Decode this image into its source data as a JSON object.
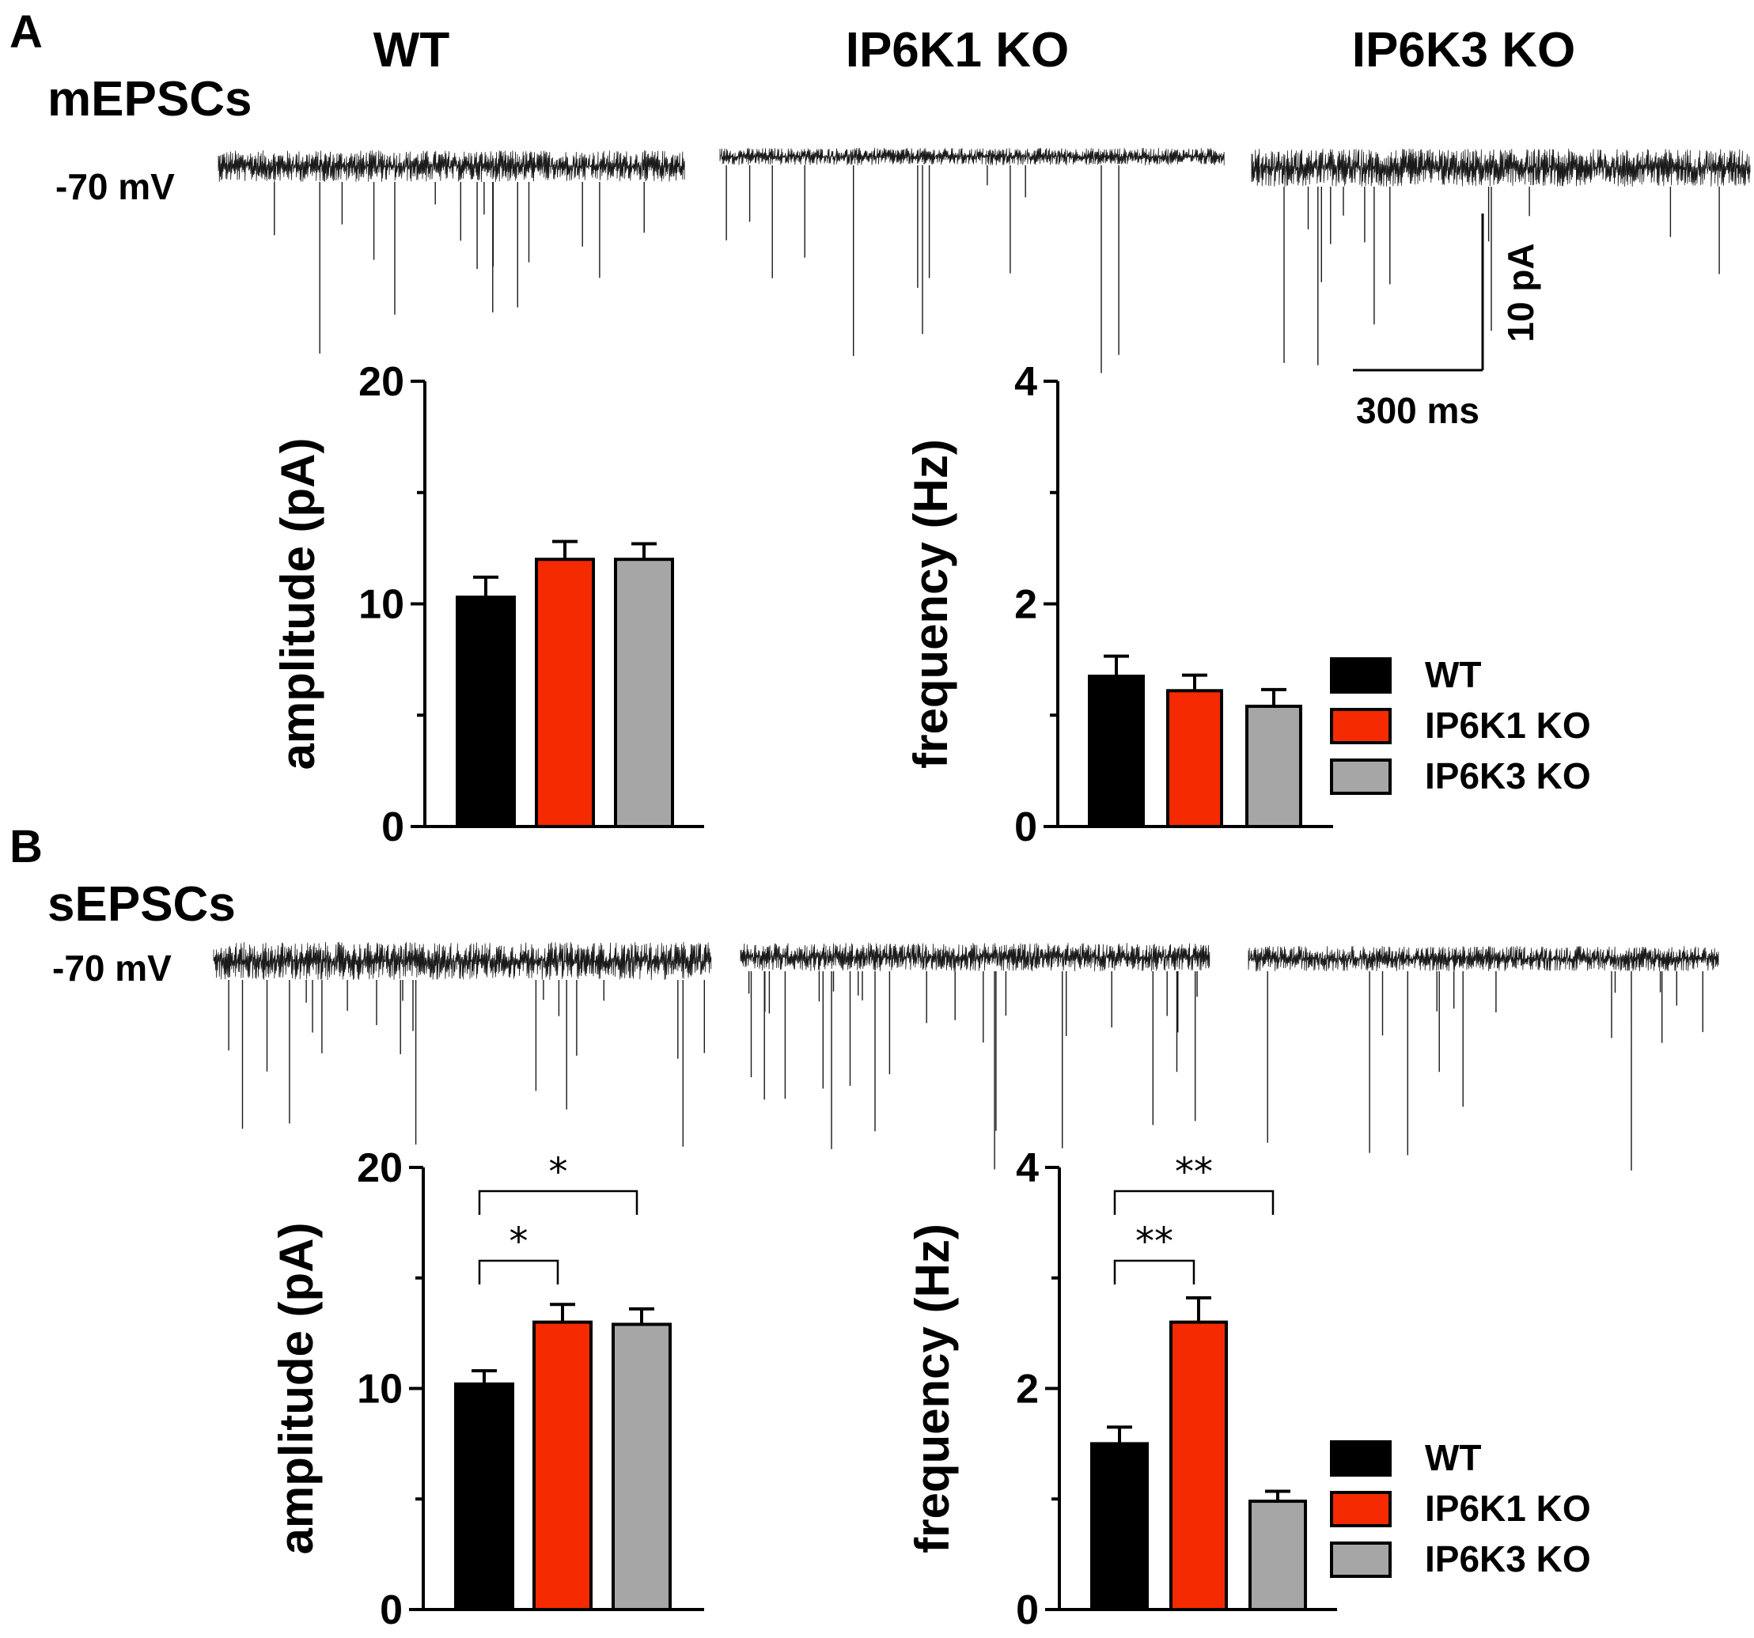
{
  "panels": {
    "A": {
      "letter": "A",
      "trace_title": "mEPSCs",
      "holding": "-70 mV"
    },
    "B": {
      "letter": "B",
      "trace_title": "sEPSCs",
      "holding": "-70 mV"
    }
  },
  "groups": {
    "wt": "WT",
    "ip6k1": "IP6K1 KO",
    "ip6k3": "IP6K3 KO"
  },
  "scale_bar": {
    "y": "10 pA",
    "x": "300 ms"
  },
  "colors": {
    "wt": "#000000",
    "ip6k1": "#f52a00",
    "ip6k3": "#a6a6a6",
    "trace": "#1a1a1a"
  },
  "chart_data": [
    {
      "id": "A-amplitude",
      "type": "bar",
      "categories": [
        "WT",
        "IP6K1 KO",
        "IP6K3 KO"
      ],
      "values": [
        10.3,
        12.0,
        12.0
      ],
      "errors": [
        0.9,
        0.8,
        0.7
      ],
      "ylabel": "amplitude (pA)",
      "ylim": [
        0,
        20
      ],
      "yticks": [
        0,
        10,
        20
      ],
      "legend": "none",
      "significance": []
    },
    {
      "id": "A-frequency",
      "type": "bar",
      "categories": [
        "WT",
        "IP6K1 KO",
        "IP6K3 KO"
      ],
      "values": [
        1.35,
        1.22,
        1.08
      ],
      "errors": [
        0.18,
        0.14,
        0.15
      ],
      "ylabel": "frequency (Hz)",
      "ylim": [
        0,
        4
      ],
      "yticks": [
        0,
        2,
        4
      ],
      "legend": "right",
      "significance": []
    },
    {
      "id": "B-amplitude",
      "type": "bar",
      "categories": [
        "WT",
        "IP6K1 KO",
        "IP6K3 KO"
      ],
      "values": [
        10.2,
        13.0,
        12.9
      ],
      "errors": [
        0.6,
        0.8,
        0.7
      ],
      "ylabel": "amplitude (pA)",
      "ylim": [
        0,
        20
      ],
      "yticks": [
        0,
        10,
        20
      ],
      "legend": "none",
      "significance": [
        {
          "from": 0,
          "to": 1,
          "label": "*"
        },
        {
          "from": 0,
          "to": 2,
          "label": "*"
        }
      ]
    },
    {
      "id": "B-frequency",
      "type": "bar",
      "categories": [
        "WT",
        "IP6K1 KO",
        "IP6K3 KO"
      ],
      "values": [
        1.5,
        2.6,
        0.98
      ],
      "errors": [
        0.15,
        0.22,
        0.09
      ],
      "ylabel": "frequency (Hz)",
      "ylim": [
        0,
        4
      ],
      "yticks": [
        0,
        2,
        4
      ],
      "legend": "right",
      "significance": [
        {
          "from": 0,
          "to": 1,
          "label": "**"
        },
        {
          "from": 0,
          "to": 2,
          "label": "**"
        }
      ]
    }
  ]
}
